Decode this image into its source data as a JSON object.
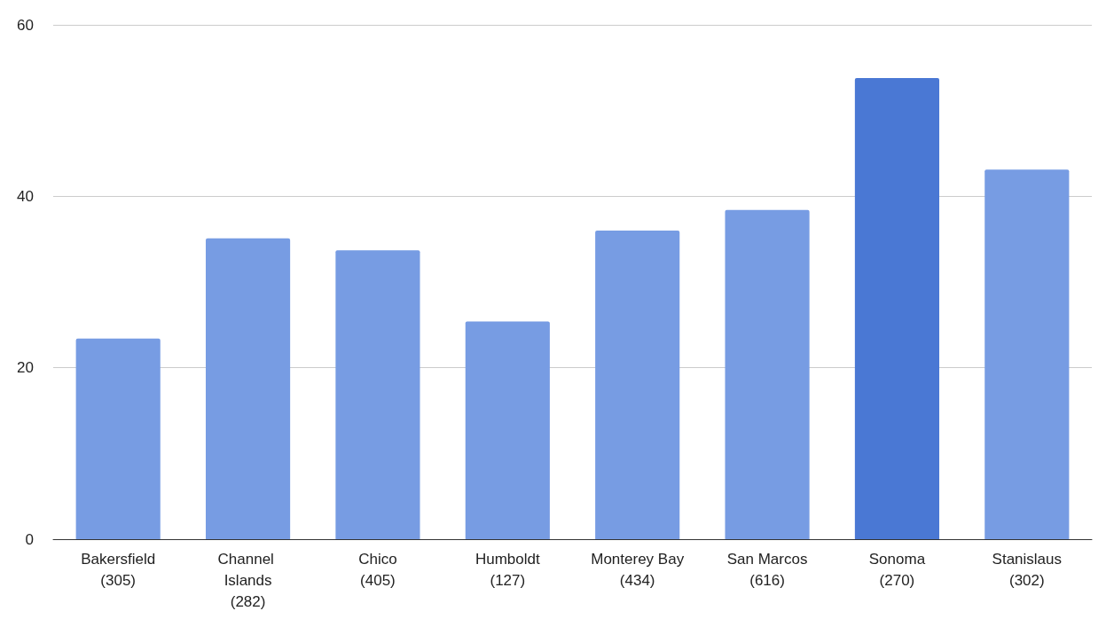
{
  "chart_data": {
    "type": "bar",
    "categories": [
      "Bakersfield (305)",
      "Channel Islands (282)",
      "Chico (405)",
      "Humboldt (127)",
      "Monterey Bay (434)",
      "San Marcos (616)",
      "Sonoma (270)",
      "Stanislaus (302)"
    ],
    "values": [
      23.4,
      35.1,
      33.7,
      25.4,
      36.0,
      38.4,
      53.8,
      43.1
    ],
    "colors": [
      "#779ce3",
      "#779ce3",
      "#779ce3",
      "#779ce3",
      "#779ce3",
      "#779ce3",
      "#4a78d4",
      "#779ce3"
    ],
    "ylim": [
      0,
      60
    ],
    "yticks": [
      0,
      20,
      40,
      60
    ],
    "grid": "y"
  }
}
